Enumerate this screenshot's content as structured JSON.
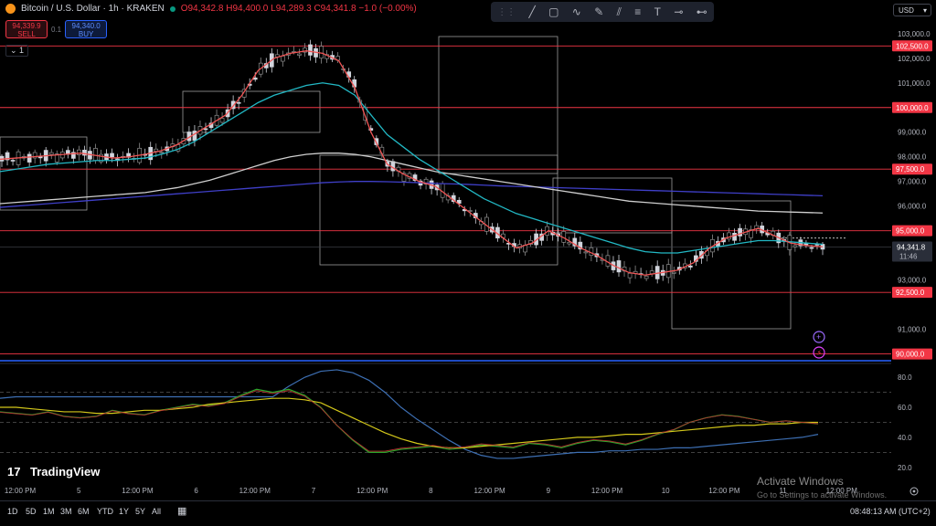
{
  "header": {
    "symbol": "Bitcoin / U.S. Dollar · 1h · KRAKEN",
    "open": "O94,342.8",
    "high": "H94,400.0",
    "low": "L94,289.3",
    "close": "C94,341.8",
    "change": "−1.0 (−0.00%)"
  },
  "trade": {
    "sell_price": "94,339.9",
    "sell_label": "SELL",
    "spread": "0.1",
    "buy_price": "94,340.0",
    "buy_label": "BUY"
  },
  "collapse_label": "⌄ 1",
  "currency": "USD",
  "toolbar_icons": [
    "grip-icon",
    "trendline-icon",
    "rectangle-icon",
    "path-icon",
    "brush-icon",
    "parallel-channel-icon",
    "fib-retracement-icon",
    "text-icon",
    "horizontal-line-icon",
    "horizontal-ray-icon"
  ],
  "price_axis": [
    "103,000.0",
    "102,000.0",
    "101,000.0",
    "99,000.0",
    "98,000.0",
    "97,000.0",
    "96,000.0",
    "93,000.0",
    "91,000.0"
  ],
  "price_lines": [
    {
      "label": "102,500.0",
      "value": 102500
    },
    {
      "label": "100,000.0",
      "value": 100000
    },
    {
      "label": "97,500.0",
      "value": 97500
    },
    {
      "label": "95,000.0",
      "value": 95000
    },
    {
      "label": "92,500.0",
      "value": 92500
    },
    {
      "label": "90,000.0",
      "value": 90000
    }
  ],
  "last_price": {
    "label": "94,341.8",
    "countdown": "11:46",
    "value": 94341.8
  },
  "osc_axis": [
    "80.0",
    "60.0",
    "40.0",
    "20.0"
  ],
  "time_axis": [
    "12:00 PM",
    "5",
    "12:00 PM",
    "6",
    "12:00 PM",
    "7",
    "12:00 PM",
    "8",
    "12:00 PM",
    "9",
    "12:00 PM",
    "10",
    "12:00 PM",
    "11",
    "12:00 PM"
  ],
  "logo_text": "TradingView",
  "timeframes": [
    "1D",
    "5D",
    "1M",
    "3M",
    "6M",
    "YTD",
    "1Y",
    "5Y",
    "All"
  ],
  "clock": "08:48:13 AM (UTC+2)",
  "watermark": {
    "title": "Activate Windows",
    "subtitle": "Go to Settings to activate Windows."
  },
  "colors": {
    "up": "#8c8c8c",
    "down": "#d1d4dc",
    "level": "#f23645",
    "ma_fast": "#f05454",
    "ma_mid": "#22b8c4",
    "ma_slow": "#cfcfcf",
    "ma_long": "#3f3fc8",
    "osc_yellow": "#d4c81a",
    "osc_blue": "#3d6fb3",
    "osc_green": "#2aa52a",
    "osc_red": "#b03030"
  },
  "chart_data": {
    "type": "line",
    "y_range": [
      89800,
      103400
    ],
    "ma_fast": [
      97900,
      97950,
      98000,
      98050,
      98100,
      98150,
      98050,
      97950,
      98000,
      98100,
      98250,
      98500,
      98900,
      99300,
      99700,
      100500,
      101500,
      102000,
      102200,
      102300,
      102200,
      101900,
      100800,
      99000,
      97700,
      97300,
      97000,
      96800,
      96300,
      95800,
      95300,
      94800,
      94300,
      94500,
      95000,
      94700,
      94300,
      94000,
      93600,
      93300,
      93200,
      93300,
      93400,
      93700,
      94300,
      94700,
      94900,
      95100,
      94800,
      94500,
      94400,
      94350
    ],
    "ma_mid": [
      97400,
      97500,
      97600,
      97700,
      97750,
      97800,
      97850,
      97850,
      97900,
      97950,
      98100,
      98300,
      98600,
      99000,
      99400,
      99800,
      100200,
      100500,
      100700,
      100900,
      101000,
      100900,
      100500,
      99700,
      98900,
      98400,
      97900,
      97500,
      97100,
      96700,
      96300,
      96000,
      95700,
      95500,
      95300,
      95100,
      94900,
      94700,
      94500,
      94300,
      94150,
      94100,
      94100,
      94200,
      94300,
      94400,
      94500,
      94600,
      94600,
      94550,
      94500,
      94450
    ],
    "ma_slow": [
      96100,
      96150,
      96200,
      96250,
      96300,
      96350,
      96400,
      96450,
      96500,
      96550,
      96650,
      96750,
      96900,
      97050,
      97250,
      97450,
      97650,
      97850,
      98000,
      98100,
      98150,
      98150,
      98100,
      98000,
      97850,
      97700,
      97550,
      97400,
      97300,
      97200,
      97100,
      97000,
      96900,
      96800,
      96700,
      96600,
      96500,
      96400,
      96300,
      96200,
      96150,
      96100,
      96050,
      96000,
      95950,
      95900,
      95850,
      95800,
      95780,
      95760,
      95740,
      95720
    ],
    "ma_long": [
      95950,
      96000,
      96050,
      96100,
      96150,
      96200,
      96250,
      96300,
      96350,
      96400,
      96450,
      96500,
      96550,
      96600,
      96650,
      96700,
      96750,
      96800,
      96850,
      96900,
      96950,
      96980,
      97000,
      97000,
      96990,
      96970,
      96950,
      96920,
      96900,
      96880,
      96850,
      96820,
      96800,
      96780,
      96760,
      96740,
      96720,
      96700,
      96680,
      96660,
      96640,
      96620,
      96600,
      96580,
      96560,
      96540,
      96520,
      96500,
      96480,
      96460,
      96440,
      96420
    ],
    "osc_range": [
      15,
      88
    ],
    "osc_yellow": [
      60,
      60,
      59,
      58,
      57,
      57,
      56,
      56,
      57,
      58,
      58,
      59,
      60,
      62,
      63,
      64,
      65,
      66,
      66,
      65,
      63,
      58,
      53,
      48,
      43,
      39,
      36,
      34,
      33,
      33,
      34,
      35,
      36,
      37,
      38,
      39,
      40,
      40,
      41,
      42,
      42,
      43,
      44,
      45,
      46,
      47,
      48,
      48,
      49,
      49,
      50,
      50
    ],
    "osc_blue": [
      66,
      67,
      67,
      67,
      67,
      67,
      67,
      67,
      67,
      67,
      67,
      67,
      67,
      67,
      67,
      67,
      67,
      67,
      74,
      80,
      84,
      85,
      83,
      78,
      70,
      60,
      52,
      45,
      38,
      32,
      28,
      26,
      26,
      27,
      28,
      29,
      30,
      30,
      31,
      31,
      32,
      32,
      33,
      33,
      34,
      35,
      36,
      37,
      38,
      39,
      40,
      42
    ],
    "osc_green": [
      57,
      56,
      55,
      57,
      54,
      53,
      54,
      58,
      56,
      55,
      58,
      60,
      62,
      61,
      63,
      68,
      72,
      70,
      72,
      68,
      60,
      48,
      38,
      30,
      30,
      32,
      33,
      34,
      32,
      33,
      35,
      34,
      33,
      36,
      35,
      33,
      36,
      38,
      37,
      35,
      38,
      42,
      45,
      50,
      53,
      55,
      54,
      52,
      50,
      51,
      50,
      49
    ]
  }
}
